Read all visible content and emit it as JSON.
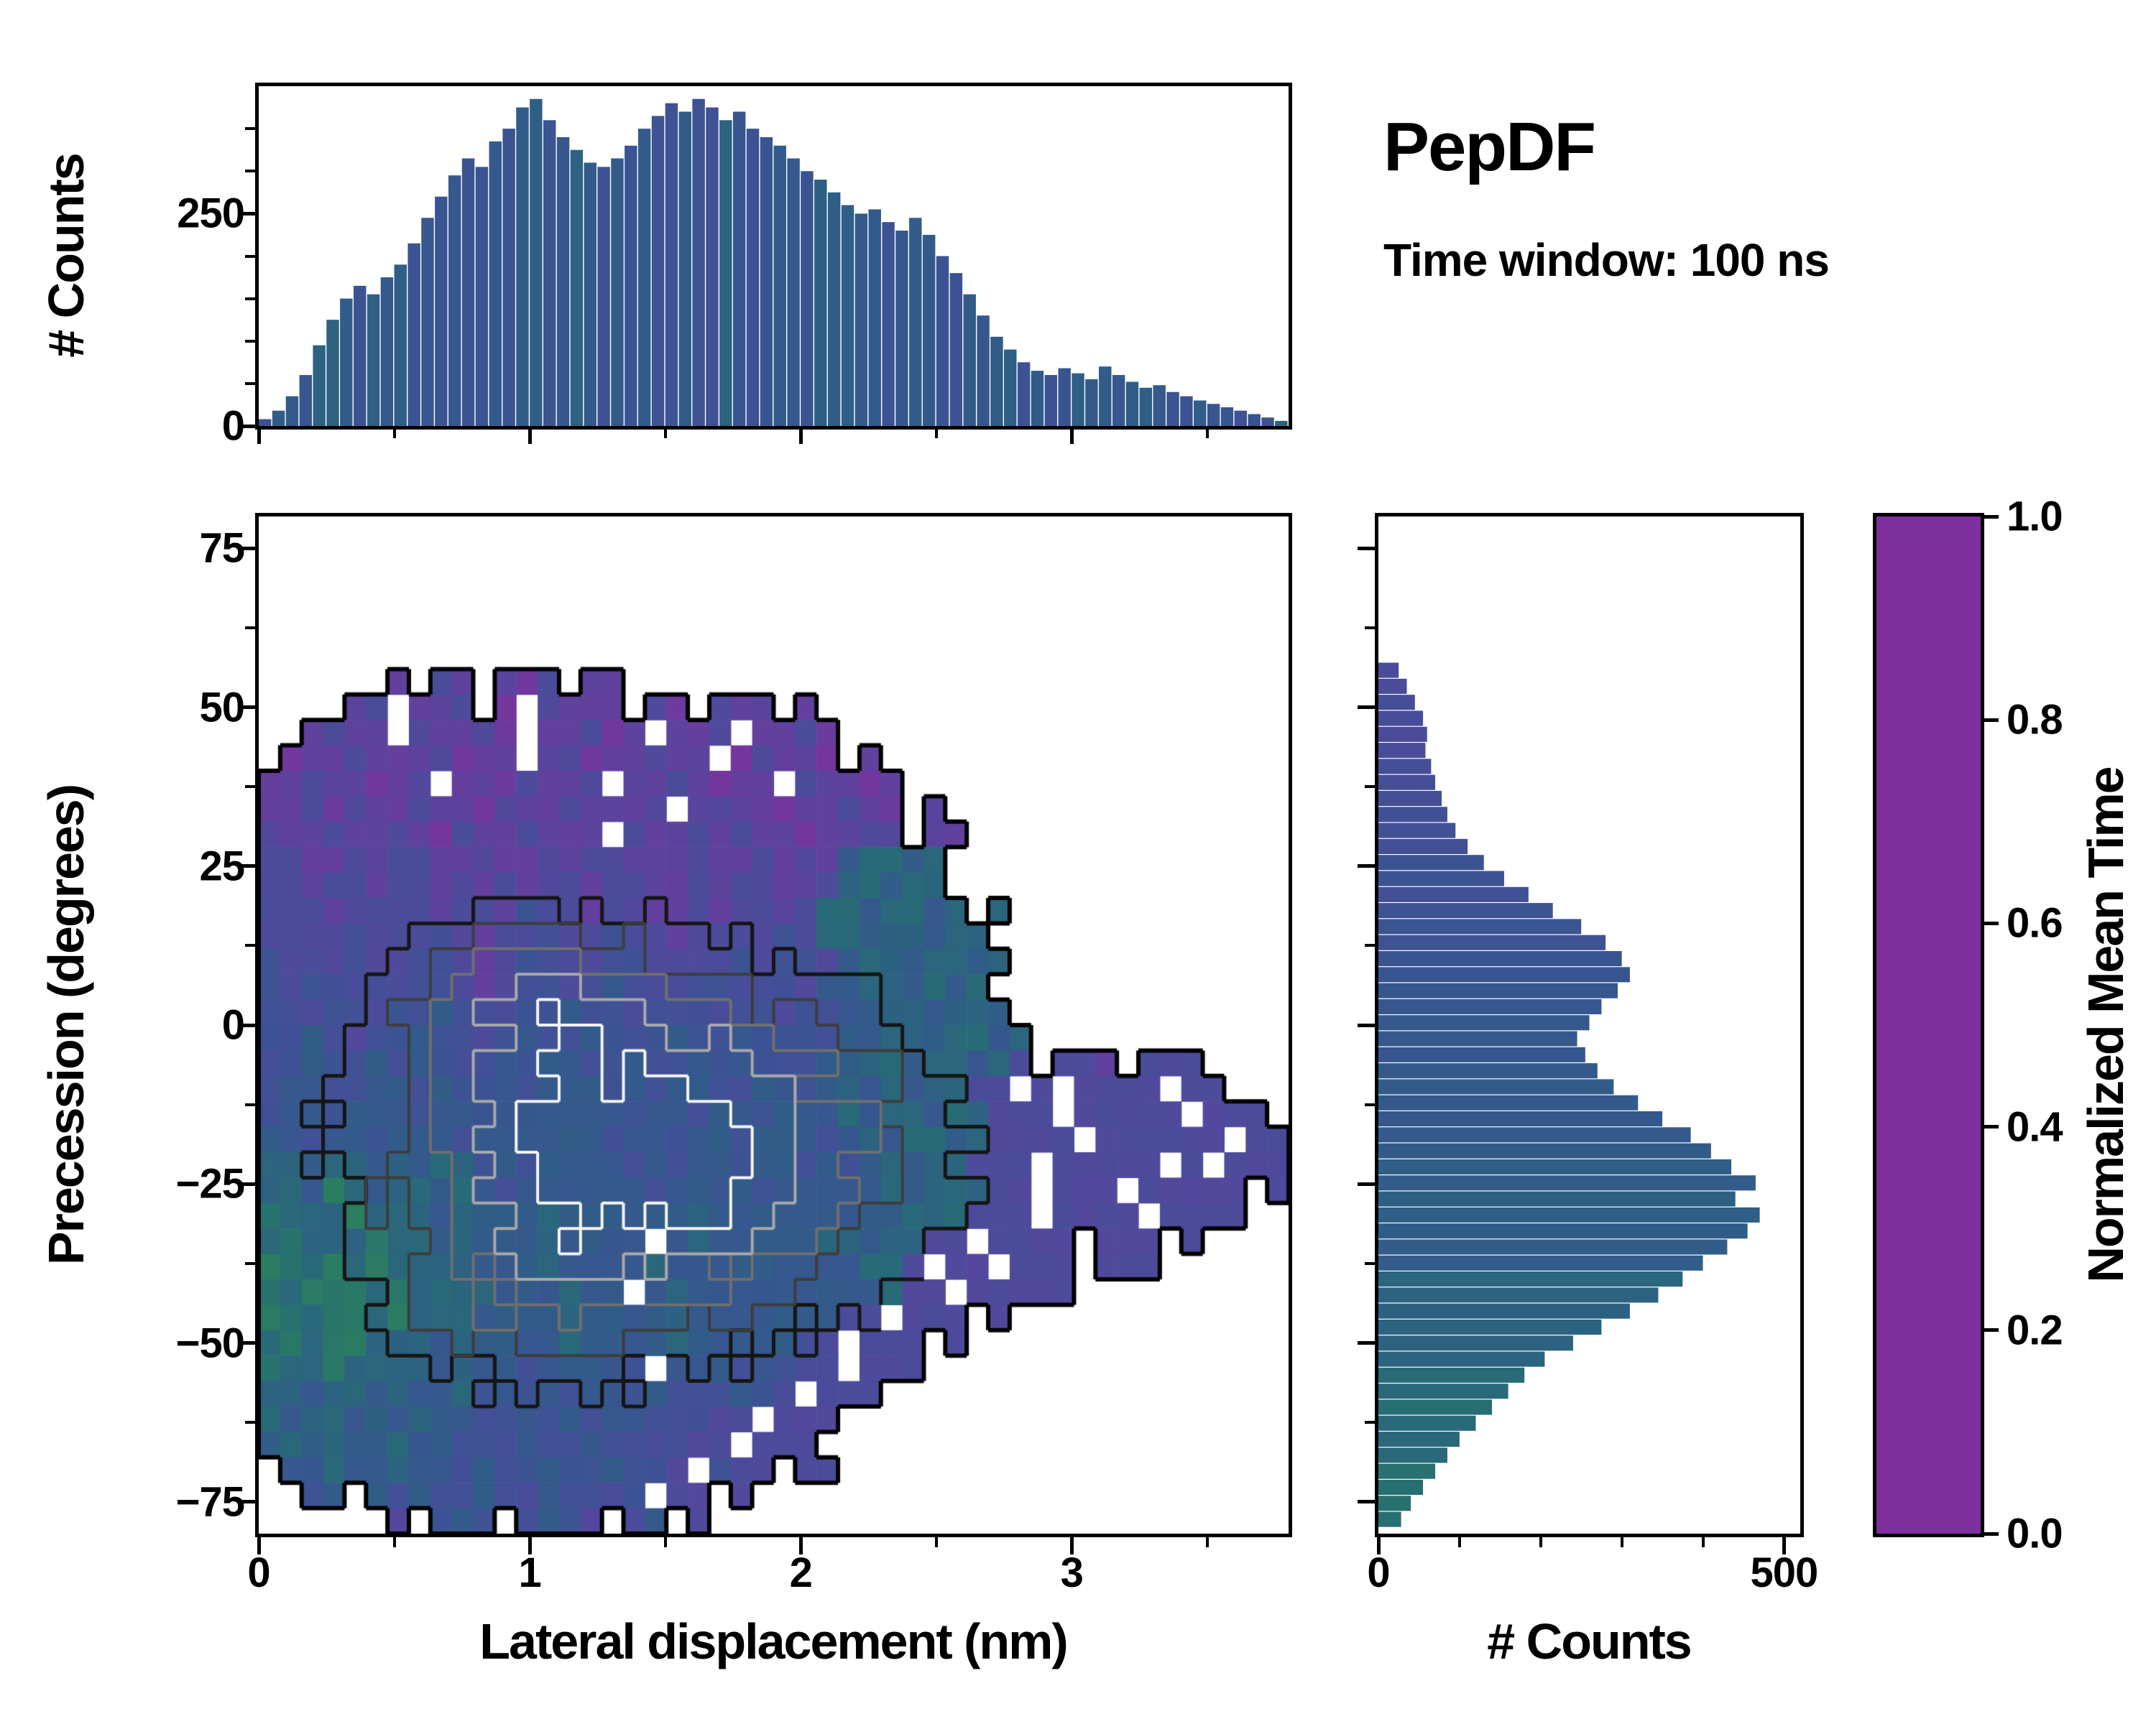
{
  "header": {
    "title": "PepDF",
    "subtitle": "Time window: 100 ns"
  },
  "labels": {
    "top_ylabel": "# Counts",
    "main_xlabel": "Lateral displacement (nm)",
    "main_ylabel": "Precession (degrees)",
    "right_xlabel": "# Counts",
    "colorbar_label": "Normalized Mean Time"
  },
  "colors": {
    "background": "#ffffff",
    "spine": "#000000",
    "colormap": [
      {
        "t": 0.0,
        "c": "#7e2f9e"
      },
      {
        "t": 0.15,
        "c": "#693c9f"
      },
      {
        "t": 0.3,
        "c": "#4e4a9c"
      },
      {
        "t": 0.45,
        "c": "#3a5492"
      },
      {
        "t": 0.55,
        "c": "#2f5e86"
      },
      {
        "t": 0.65,
        "c": "#276d74"
      },
      {
        "t": 0.75,
        "c": "#2c815c"
      },
      {
        "t": 0.85,
        "c": "#3b9a45"
      },
      {
        "t": 1.0,
        "c": "#4fb63a"
      }
    ]
  },
  "chart_data": [
    {
      "id": "top_histogram",
      "type": "bar",
      "orientation": "vertical",
      "ylabel": "# Counts",
      "xlim": [
        0,
        3.8
      ],
      "ylim": [
        0,
        400
      ],
      "yticks": [
        {
          "v": 0,
          "label": "0"
        },
        {
          "v": 250,
          "label": "250"
        }
      ],
      "yminor": [
        50,
        100,
        150,
        200,
        300,
        350
      ],
      "xticks": [
        0,
        1,
        2,
        3
      ],
      "xminor": [
        0.5,
        1.5,
        2.5,
        3.5
      ],
      "bin_start": 0,
      "bin_width": 0.05,
      "values": [
        8,
        18,
        35,
        60,
        95,
        125,
        150,
        165,
        155,
        175,
        190,
        215,
        245,
        270,
        295,
        315,
        305,
        335,
        350,
        375,
        385,
        360,
        340,
        325,
        310,
        305,
        315,
        330,
        350,
        365,
        380,
        370,
        385,
        375,
        360,
        370,
        350,
        340,
        330,
        315,
        300,
        290,
        275,
        260,
        250,
        255,
        240,
        230,
        245,
        225,
        200,
        180,
        155,
        130,
        105,
        90,
        75,
        65,
        60,
        68,
        62,
        55,
        70,
        60,
        52,
        45,
        48,
        40,
        35,
        30,
        26,
        22,
        18,
        14,
        10,
        6
      ]
    },
    {
      "id": "main_heatmap",
      "type": "heatmap",
      "xlabel": "Lateral displacement (nm)",
      "ylabel": "Precession (degrees)",
      "xlim": [
        0,
        3.8
      ],
      "ylim": [
        -80,
        80
      ],
      "xticks": [
        {
          "v": 0,
          "label": "0"
        },
        {
          "v": 1,
          "label": "1"
        },
        {
          "v": 2,
          "label": "2"
        },
        {
          "v": 3,
          "label": "3"
        }
      ],
      "xminor": [
        0.5,
        1.5,
        2.5,
        3.5
      ],
      "yticks": [
        {
          "v": 75,
          "label": "75"
        },
        {
          "v": 50,
          "label": "50"
        },
        {
          "v": 25,
          "label": "25"
        },
        {
          "v": 0,
          "label": "0"
        },
        {
          "v": -25,
          "label": "−25"
        },
        {
          "v": -50,
          "label": "−50"
        },
        {
          "v": -75,
          "label": "−75"
        }
      ],
      "yminor": [
        62.5,
        37.5,
        12.5,
        -12.5,
        -37.5,
        -62.5
      ],
      "value_label": "Normalized Mean Time",
      "cell_encoding": "each row string has 48 columns spanning x 0 to 3.8 nm; 40 rows span y +80 to -80 degrees; '.' = no data, digit d = normalized mean time of approx d/10",
      "rows": [
        "",
        "",
        "",
        "",
        "",
        "",
        "......2.32.213.22",
        "....23.223.1.3222.31.322.2",
        "..2322.32231.22312.223.2231",
        ".12232223122.23122322.13221.2",
        "22322123.2213223.2232122.32212",
        "2231322322132232223.2322122321.2",
        "3223223213223222.3223232212233.22",
        "33223233223223233222322323256656",
        "33233233232323323322323322366566",
        "333233332332433233223233236656656.6",
        "3333433343233433433233334366566566.",
        "43334334432344334433334344356656656",
        "4344343443234434543344344355665656",
        "44344344544344544344434434455665665",
        "445434454434544544454454444556656656",
        "445445454445455445445454445566566563.332.333",
        "45544554544545554545544554565656633.3.3333.33",
        "4554555455455555545545545556566566333.33333.333",
        "55455455545555554554554555456566563333.333333.33",
        "665665656645455554545545545456566333.33333.3.333",
        "665765665654555555455554555556566633.333.33333.3",
        "766676665655565555556555555555666333.3333.3333",
        "676667665655565555.56555556656633.3333.333.3",
        "7767676666555655556555555555663.33.333.333",
        "76777676666555655.56555555555633.33333",
        "77677676665555655556555555533.333.3",
        "676776665655556555565555543.333.3",
        "766766665655455554.55545433.333",
        "6656656556454545545444543.333",
        "65665656554454545544433.333",
        "5656556554445445443433.333",
        ".5565565545445445443.433.33",
        "..45.5454454354434.33.3",
        "......3.454.4543.35.3"
      ],
      "contours": {
        "noise": 0.16,
        "blobs": [
          {
            "x": 1.45,
            "y": -20,
            "sx": 1.05,
            "sy": 30,
            "a": 1.0
          },
          {
            "x": 0.95,
            "y": 6,
            "sx": 0.5,
            "sy": 14,
            "a": 0.38
          },
          {
            "x": 0.8,
            "y": -47,
            "sx": 0.55,
            "sy": 16,
            "a": 0.2
          }
        ],
        "levels": [
          {
            "t": 0.3,
            "color": "#151515",
            "w": 5
          },
          {
            "t": 0.45,
            "color": "#3d3d3d",
            "w": 4
          },
          {
            "t": 0.6,
            "color": "#6f6f6f",
            "w": 4
          },
          {
            "t": 0.74,
            "color": "#a9a9a9",
            "w": 4
          },
          {
            "t": 0.87,
            "color": "#f6f6f6",
            "w": 4
          }
        ],
        "outline": {
          "color": "#000000",
          "w": 6
        }
      }
    },
    {
      "id": "right_histogram",
      "type": "bar",
      "orientation": "horizontal",
      "xlabel": "# Counts",
      "xlim": [
        0,
        520
      ],
      "xticks": [
        {
          "v": 0,
          "label": "0"
        },
        {
          "v": 500,
          "label": "500"
        }
      ],
      "xminor": [
        100,
        200,
        300,
        400
      ],
      "bin_start_deg": 57,
      "bin_step_deg": -2.52,
      "values": [
        25,
        35,
        45,
        55,
        60,
        58,
        65,
        70,
        78,
        85,
        95,
        110,
        130,
        155,
        185,
        215,
        250,
        280,
        300,
        310,
        295,
        275,
        260,
        245,
        255,
        270,
        290,
        320,
        350,
        385,
        410,
        435,
        465,
        440,
        470,
        455,
        430,
        400,
        375,
        345,
        310,
        275,
        240,
        205,
        180,
        160,
        140,
        120,
        100,
        85,
        70,
        55,
        40,
        28
      ]
    },
    {
      "id": "colorbar",
      "type": "colorbar",
      "label": "Normalized Mean Time",
      "lim": [
        0,
        1
      ],
      "ticks": [
        {
          "v": 1.0,
          "label": "1.0"
        },
        {
          "v": 0.8,
          "label": "0.8"
        },
        {
          "v": 0.6,
          "label": "0.6"
        },
        {
          "v": 0.4,
          "label": "0.4"
        },
        {
          "v": 0.2,
          "label": "0.2"
        },
        {
          "v": 0.0,
          "label": "0.0"
        }
      ]
    }
  ]
}
